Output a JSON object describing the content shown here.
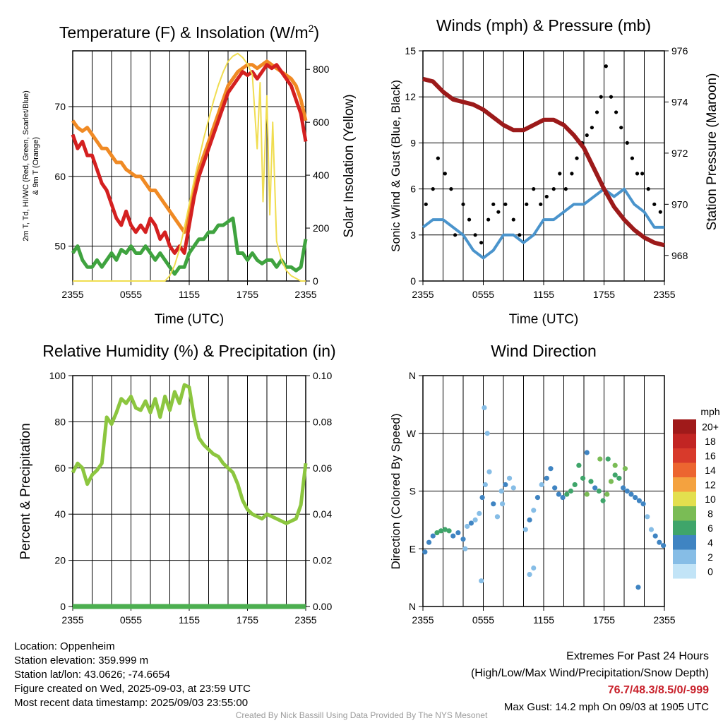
{
  "chart_data": [
    {
      "type": "line",
      "title": "Temperature (F) & Insolation (W/m²)",
      "title_main": "Temperature (F) & Insolation (W/m",
      "title_sup": "2",
      "title_close": ")",
      "xlabel": "Time (UTC)",
      "ylabel_left_line1": "2m T, Td, HI/WC (Red, Green, Scarlet/Blue)",
      "ylabel_left_line2": "& 9m T (Orange)",
      "ylabel_right": "Solar Insolation (Yellow)",
      "x_ticks": [
        "2355",
        "0555",
        "1155",
        "1755",
        "2355"
      ],
      "y_left_ticks": [
        50,
        60,
        70
      ],
      "ylim_left": [
        45,
        78
      ],
      "y_right_ticks": [
        0,
        200,
        400,
        600,
        800
      ],
      "ylim_right": [
        0,
        870
      ],
      "xlim_hours": [
        0,
        24
      ],
      "series": [
        {
          "name": "9m T",
          "color": "#f08a24",
          "axis": "left",
          "x": [
            0,
            0.5,
            1,
            1.5,
            2,
            2.5,
            3,
            3.5,
            4,
            4.5,
            5,
            5.5,
            6,
            6.5,
            7,
            7.5,
            8,
            8.5,
            9,
            9.5,
            10,
            10.5,
            11,
            11.5,
            12,
            12.5,
            13,
            13.5,
            14,
            14.5,
            15,
            15.5,
            16,
            16.5,
            17,
            17.5,
            18,
            18.5,
            19,
            19.5,
            20,
            20.5,
            21,
            21.5,
            22,
            22.5,
            23,
            23.5,
            24
          ],
          "y": [
            68,
            67,
            66.5,
            67,
            66,
            65,
            64,
            64,
            63,
            62,
            62,
            61,
            60.5,
            60,
            60,
            59,
            58,
            58,
            57,
            56,
            55,
            54,
            53,
            52,
            55,
            58,
            61,
            63,
            65,
            67,
            69,
            71,
            73,
            74,
            75,
            75.5,
            76,
            76,
            75.5,
            76,
            76.5,
            76,
            75.5,
            75,
            74.5,
            74,
            73,
            71,
            68
          ]
        },
        {
          "name": "2m T",
          "color": "#d42020",
          "axis": "left",
          "x": [
            0,
            0.5,
            1,
            1.5,
            2,
            2.5,
            3,
            3.5,
            4,
            4.5,
            5,
            5.5,
            6,
            6.5,
            7,
            7.5,
            8,
            8.5,
            9,
            9.5,
            10,
            10.5,
            11,
            11.5,
            12,
            12.5,
            13,
            13.5,
            14,
            14.5,
            15,
            15.5,
            16,
            16.5,
            17,
            17.5,
            18,
            18.5,
            19,
            19.5,
            20,
            20.5,
            21,
            21.5,
            22,
            22.5,
            23,
            23.5,
            24
          ],
          "y": [
            66,
            64,
            65,
            63,
            63,
            61,
            59,
            58,
            56,
            54,
            53,
            55,
            53,
            52,
            53,
            52,
            54,
            53,
            51,
            52,
            50,
            49,
            50,
            49,
            53,
            57,
            60,
            62,
            64,
            66,
            68,
            70,
            72,
            73,
            74,
            75,
            74.5,
            75,
            74,
            75,
            76,
            75.5,
            76,
            75,
            74,
            73,
            71,
            69,
            65
          ]
        },
        {
          "name": "2m Td",
          "color": "#3fa33f",
          "axis": "left",
          "x": [
            0,
            0.5,
            1,
            1.5,
            2,
            2.5,
            3,
            3.5,
            4,
            4.5,
            5,
            5.5,
            6,
            6.5,
            7,
            7.5,
            8,
            8.5,
            9,
            9.5,
            10,
            10.5,
            11,
            11.5,
            12,
            12.5,
            13,
            13.5,
            14,
            14.5,
            15,
            15.5,
            16,
            16.5,
            17,
            17.5,
            18,
            18.5,
            19,
            19.5,
            20,
            20.5,
            21,
            21.5,
            22,
            22.5,
            23,
            23.5,
            24
          ],
          "y": [
            49,
            50,
            48,
            47,
            47,
            48,
            47,
            48,
            49,
            48,
            49.5,
            49,
            50,
            49,
            49,
            50,
            49,
            48,
            49,
            48,
            47,
            46,
            47,
            47,
            49,
            50,
            51,
            51,
            52,
            52,
            53,
            53,
            53.5,
            54,
            49,
            49,
            48,
            49,
            48,
            47.5,
            48,
            48,
            47,
            48,
            47,
            47,
            46.5,
            47,
            51
          ]
        },
        {
          "name": "Solar Insolation",
          "color": "#f0dd50",
          "axis": "right",
          "x": [
            0,
            9.5,
            10,
            10.5,
            11,
            11.5,
            12,
            12.5,
            13,
            13.5,
            14,
            14.5,
            15,
            15.5,
            16,
            16.5,
            17,
            17.5,
            18,
            18.5,
            19,
            19.3,
            19.6,
            20,
            20.3,
            20.6,
            21,
            21.5,
            22,
            22.5,
            23,
            23.5,
            24
          ],
          "y": [
            0,
            0,
            20,
            60,
            120,
            200,
            290,
            380,
            460,
            540,
            610,
            680,
            740,
            790,
            830,
            850,
            860,
            845,
            820,
            780,
            500,
            750,
            300,
            700,
            250,
            600,
            150,
            80,
            40,
            20,
            10,
            0,
            0
          ]
        }
      ]
    },
    {
      "type": "line",
      "title": "Winds (mph) & Pressure (mb)",
      "xlabel": "Time (UTC)",
      "ylabel_left": "Sonic Wind & Gust (Blue, Black)",
      "ylabel_right": "Station Pressure (Maroon)",
      "x_ticks": [
        "2355",
        "0555",
        "1155",
        "1755",
        "2355"
      ],
      "y_left_ticks": [
        0,
        3,
        6,
        9,
        12,
        15
      ],
      "ylim_left": [
        0,
        15
      ],
      "y_right_ticks": [
        968,
        970,
        972,
        974,
        976
      ],
      "ylim_right": [
        967,
        976
      ],
      "xlim_hours": [
        0,
        24
      ],
      "series": [
        {
          "name": "Sonic Wind",
          "color": "#4a94cc",
          "axis": "left",
          "x": [
            0,
            1,
            2,
            3,
            4,
            5,
            6,
            7,
            8,
            9,
            10,
            11,
            12,
            13,
            14,
            15,
            16,
            17,
            18,
            19,
            20,
            21,
            22,
            23,
            24
          ],
          "y": [
            3.5,
            4,
            4,
            3.5,
            3,
            2,
            1.5,
            2,
            3,
            3,
            2.5,
            3,
            4,
            4,
            4.5,
            5,
            5,
            5.5,
            6,
            5.5,
            6,
            5,
            4.5,
            3.5,
            3.5
          ]
        },
        {
          "name": "Gust",
          "color": "#000000",
          "axis": "left",
          "style": "points",
          "x": [
            0.3,
            1,
            1.5,
            2.2,
            2.8,
            3.2,
            4,
            4.6,
            5.2,
            5.8,
            6.5,
            7,
            7.5,
            8.2,
            9,
            9.6,
            10.3,
            11,
            11.7,
            12.3,
            13,
            13.6,
            14.2,
            14.8,
            15.3,
            15.8,
            16.3,
            16.8,
            17.3,
            17.7,
            18.2,
            18.7,
            19.2,
            19.7,
            20.3,
            20.8,
            21.3,
            21.8,
            22.4,
            23,
            23.6
          ],
          "y": [
            5,
            6,
            8,
            7,
            6,
            3,
            5,
            4,
            3,
            2.5,
            4,
            5,
            4.5,
            5,
            4,
            3,
            5,
            6,
            5,
            5.5,
            6,
            7,
            6,
            7,
            8,
            9,
            9.5,
            10,
            11,
            12,
            14,
            12,
            11,
            10,
            9,
            8,
            7,
            7,
            6,
            5,
            4.5
          ]
        },
        {
          "name": "Station Pressure",
          "color": "#9c1a1a",
          "axis": "right",
          "x": [
            0,
            1,
            2,
            3,
            4,
            5,
            6,
            7,
            8,
            9,
            10,
            11,
            12,
            13,
            14,
            15,
            16,
            17,
            18,
            19,
            20,
            21,
            22,
            23,
            24
          ],
          "y": [
            974.9,
            974.8,
            974.4,
            974.1,
            974,
            973.9,
            973.7,
            973.4,
            973.1,
            972.9,
            972.9,
            973.1,
            973.3,
            973.3,
            973.1,
            972.7,
            972.2,
            971.4,
            970.6,
            969.9,
            969.4,
            969,
            968.7,
            968.5,
            968.4
          ]
        }
      ]
    },
    {
      "type": "line",
      "title": "Relative Humidity (%) & Precipitation (in)",
      "ylabel_left": "Percent & Precipitation",
      "x_ticks": [
        "2355",
        "0555",
        "1155",
        "1755",
        "2355"
      ],
      "y_left_ticks": [
        0,
        20,
        40,
        60,
        80,
        100
      ],
      "ylim_left": [
        0,
        100
      ],
      "y_right_ticks": [
        "0.00",
        "0.02",
        "0.04",
        "0.06",
        "0.08",
        "0.10"
      ],
      "ylim_right": [
        0,
        0.1
      ],
      "xlim_hours": [
        0,
        24
      ],
      "series": [
        {
          "name": "Relative Humidity",
          "color": "#8cc63f",
          "axis": "left",
          "x": [
            0,
            0.5,
            1,
            1.5,
            2,
            2.5,
            3,
            3.5,
            4,
            4.5,
            5,
            5.5,
            6,
            6.5,
            7,
            7.5,
            8,
            8.5,
            9,
            9.5,
            10,
            10.5,
            11,
            11.5,
            12,
            12.5,
            13,
            13.5,
            14,
            14.5,
            15,
            15.5,
            16,
            16.5,
            17,
            17.5,
            18,
            18.5,
            19,
            19.5,
            20,
            20.5,
            21,
            21.5,
            22,
            22.5,
            23,
            23.5,
            24
          ],
          "y": [
            58,
            62,
            60,
            53,
            57,
            59,
            62,
            82,
            79,
            84,
            90,
            88,
            91,
            86,
            85,
            89,
            84,
            90,
            82,
            91,
            85,
            93,
            88,
            96,
            95,
            82,
            73,
            70,
            68,
            66,
            65,
            62,
            60,
            58,
            53,
            46,
            42,
            40,
            39,
            38,
            40,
            39,
            38,
            37,
            36,
            37,
            38,
            44,
            62
          ]
        },
        {
          "name": "Precipitation",
          "color": "#4caf50",
          "axis": "right",
          "x": [
            0,
            24
          ],
          "y": [
            0,
            0
          ]
        }
      ]
    },
    {
      "type": "scatter",
      "title": "Wind Direction",
      "ylabel_left": "Direction (Colored By Speed)",
      "x_ticks": [
        "2355",
        "0555",
        "1155",
        "1755",
        "2355"
      ],
      "y_ticks": [
        "N",
        "E",
        "S",
        "W",
        "N"
      ],
      "ylim_degrees": [
        0,
        360
      ],
      "xlim_hours": [
        0,
        24
      ],
      "colorbar_title": "mph",
      "colorbar_labels": [
        "0",
        "2",
        "4",
        "6",
        "8",
        "10",
        "12",
        "14",
        "16",
        "18",
        "20+"
      ],
      "colorbar_colors": [
        "#c2e4f7",
        "#86bde6",
        "#3f84c2",
        "#3fa56a",
        "#7abc55",
        "#e3df4e",
        "#f4a23f",
        "#ec6530",
        "#d83a2b",
        "#c22523",
        "#a01a1a"
      ],
      "points": {
        "x": [
          0.2,
          0.6,
          1,
          1.4,
          1.8,
          2.2,
          2.6,
          3,
          3.5,
          4,
          4.4,
          4.8,
          5.2,
          5.6,
          5.9,
          6.2,
          6.6,
          7,
          7.4,
          7.8,
          8.2,
          8.6,
          9,
          10.2,
          10.6,
          11,
          11.4,
          11.8,
          12.3,
          12.7,
          13.1,
          13.5,
          13.9,
          14.3,
          14.7,
          15.1,
          15.5,
          15.9,
          16.3,
          16.7,
          17.1,
          17.5,
          17.9,
          18.3,
          18.7,
          19.1,
          19.5,
          19.9,
          20.3,
          20.7,
          21.1,
          21.5,
          21.9,
          22.3,
          22.7,
          23.1,
          23.5,
          23.9,
          6.1,
          6.4,
          4.2,
          5.8,
          7.9,
          10.6,
          11,
          16.3,
          17.6,
          18.4,
          19.1,
          20.1,
          21.4
        ],
        "y": [
          85,
          100,
          110,
          115,
          118,
          120,
          118,
          110,
          115,
          105,
          125,
          130,
          135,
          145,
          170,
          190,
          210,
          160,
          140,
          180,
          190,
          200,
          185,
          120,
          135,
          150,
          170,
          190,
          200,
          215,
          185,
          175,
          170,
          175,
          180,
          190,
          220,
          200,
          175,
          195,
          185,
          180,
          165,
          175,
          195,
          205,
          200,
          185,
          180,
          175,
          170,
          165,
          160,
          140,
          120,
          110,
          100,
          95,
          310,
          270,
          90,
          40,
          160,
          50,
          60,
          240,
          230,
          230,
          220,
          215,
          30
        ],
        "speed": [
          3,
          4,
          4,
          5,
          5,
          5,
          5,
          4,
          3,
          3,
          2,
          3,
          2,
          1,
          3,
          2,
          1,
          3,
          2,
          2,
          3,
          1,
          2,
          2,
          3,
          2,
          3,
          2,
          3,
          3,
          4,
          4,
          4,
          5,
          5,
          6,
          5,
          6,
          7,
          6,
          4,
          5,
          6,
          7,
          7,
          6,
          5,
          4,
          4,
          4,
          3,
          3,
          3,
          2,
          2,
          3,
          3,
          3,
          1,
          2,
          2,
          2,
          2,
          2,
          2,
          3,
          7,
          6,
          7,
          7,
          4
        ],
        "units": "hours UTC / degrees / mph"
      }
    }
  ],
  "info": {
    "location": "Location: Oppenheim",
    "elevation": "Station elevation: 359.999 m",
    "latlon": "Station lat/lon: 43.0626; -74.6654",
    "created": "Figure created on Wed, 2025-09-03, at 23:59 UTC",
    "recent": "Most recent data timestamp: 2025/09/03 23:55:00"
  },
  "extremes": {
    "title": "Extremes For Past 24 Hours",
    "subtitle": "(High/Low/Max Wind/Precipitation/Snow Depth)",
    "values": "76.7/48.3/8.5/0/-999",
    "values_color": "#c8202a",
    "max_gust": "Max Gust: 14.2 mph On 09/03 at 1905 UTC"
  },
  "footer": "Created By Nick Bassill Using Data Provided By The NYS Mesonet"
}
